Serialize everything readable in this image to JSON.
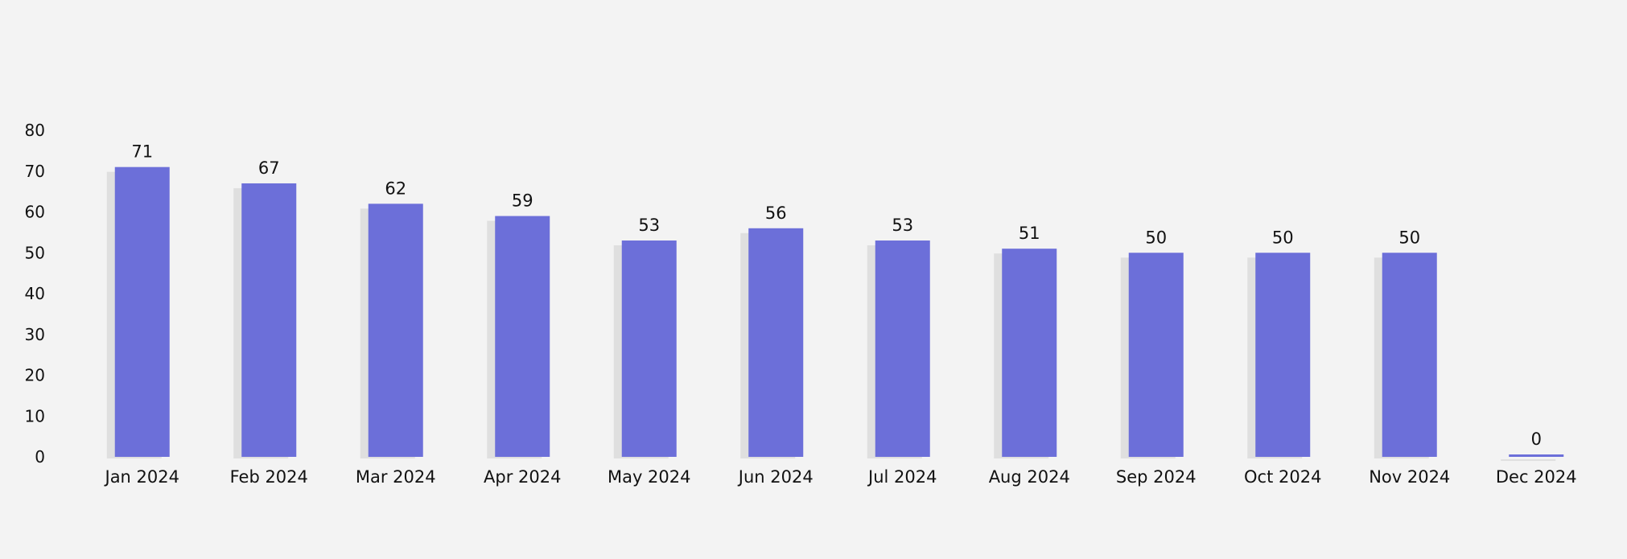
{
  "chart_data": {
    "type": "bar",
    "title": "",
    "xlabel": "",
    "ylabel": "",
    "categories": [
      "Jan 2024",
      "Feb 2024",
      "Mar 2024",
      "Apr 2024",
      "May 2024",
      "Jun 2024",
      "Jul 2024",
      "Aug 2024",
      "Sep 2024",
      "Oct 2024",
      "Nov 2024",
      "Dec 2024"
    ],
    "values": [
      71,
      67,
      62,
      59,
      53,
      56,
      53,
      51,
      50,
      50,
      50,
      0
    ],
    "ylim": [
      0,
      80
    ],
    "yticks": [
      0,
      10,
      20,
      30,
      40,
      50,
      60,
      70,
      80
    ],
    "grid": false,
    "legend": "none",
    "bar_color": "#6c6fd9",
    "shadow_color": "#d9d9d9"
  }
}
